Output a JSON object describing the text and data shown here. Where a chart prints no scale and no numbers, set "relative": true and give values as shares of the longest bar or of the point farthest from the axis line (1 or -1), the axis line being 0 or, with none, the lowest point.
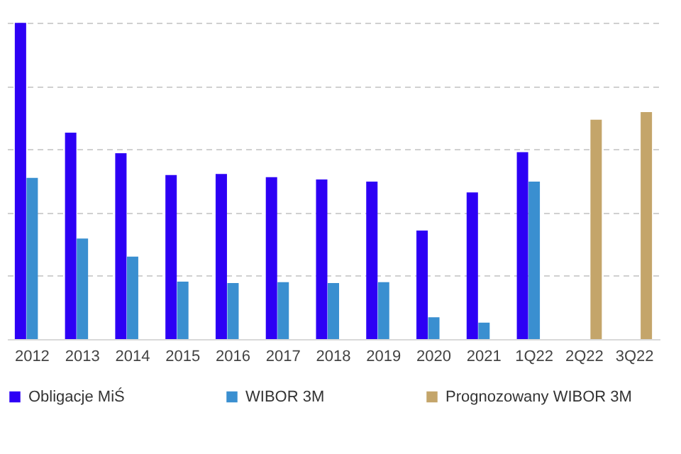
{
  "chart_data": {
    "type": "bar",
    "relative": true,
    "categories": [
      "2012",
      "2013",
      "2014",
      "2015",
      "2016",
      "2017",
      "2018",
      "2019",
      "2020",
      "2021",
      "1Q22",
      "2Q22",
      "3Q22"
    ],
    "series": [
      {
        "name": "Obligacje MiŚ",
        "color": "#2d00f5",
        "values": [
          1.0,
          0.653,
          0.588,
          0.519,
          0.522,
          0.512,
          0.505,
          0.498,
          0.343,
          0.464,
          0.591,
          null,
          null
        ]
      },
      {
        "name": "WIBOR 3M",
        "color": "#3a8fd0",
        "values": [
          0.51,
          0.318,
          0.261,
          0.182,
          0.177,
          0.18,
          0.177,
          0.18,
          0.069,
          0.052,
          0.498,
          null,
          null
        ]
      },
      {
        "name": "Prognozowany WIBOR 3M",
        "color": "#c4a56a",
        "values": [
          null,
          null,
          null,
          null,
          null,
          null,
          null,
          null,
          null,
          null,
          null,
          0.694,
          0.718
        ]
      }
    ],
    "grid": "y",
    "legend": "bottom"
  }
}
